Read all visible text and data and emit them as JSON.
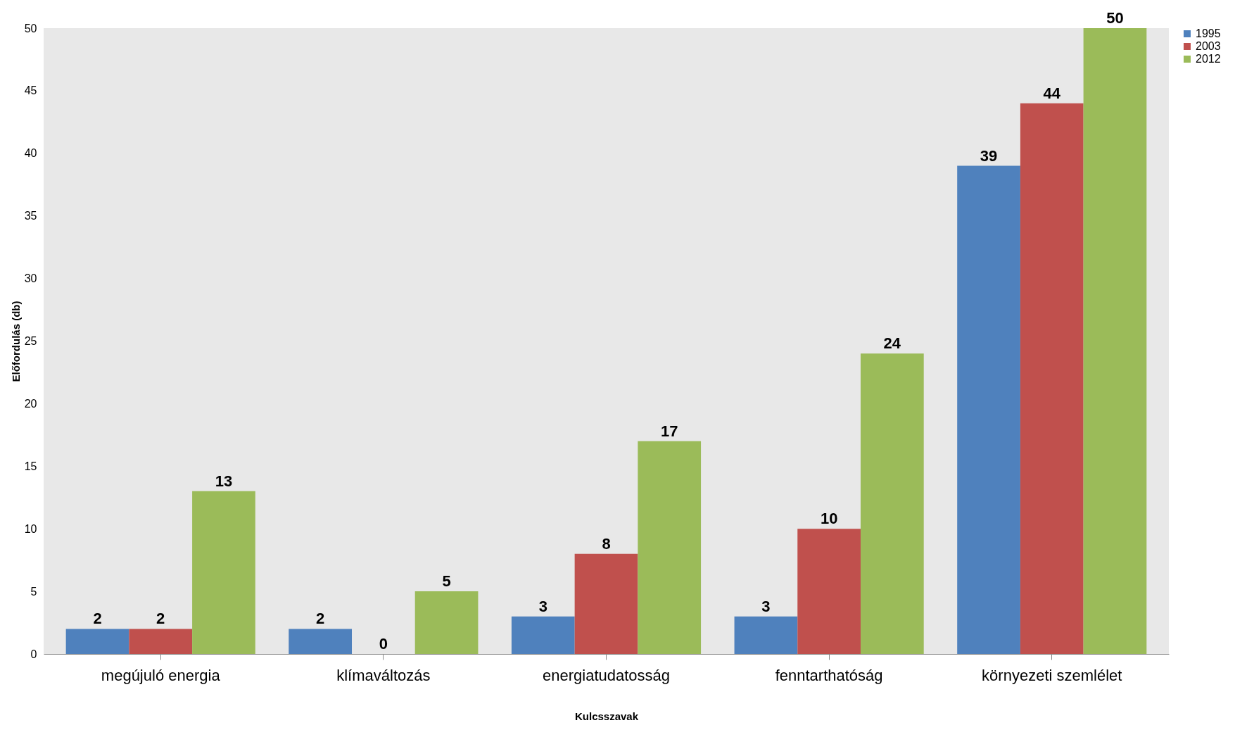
{
  "chart_data": {
    "type": "bar",
    "xlabel": "Kulcsszavak",
    "ylabel": "Előfordulás (db)",
    "categories": [
      "megújuló energia",
      "klímaváltozás",
      "energiatudatosság",
      "fenntarthatóság",
      "környezeti szemlélet"
    ],
    "series": [
      {
        "name": "1995",
        "color": "#4f81bd",
        "values": [
          2,
          2,
          3,
          3,
          39
        ]
      },
      {
        "name": "2003",
        "color": "#c0504d",
        "values": [
          2,
          0,
          8,
          10,
          44
        ]
      },
      {
        "name": "2012",
        "color": "#9bbb59",
        "values": [
          13,
          5,
          17,
          24,
          50
        ]
      }
    ],
    "ylim": [
      0,
      50
    ],
    "yticks": [
      0,
      5,
      10,
      15,
      20,
      25,
      30,
      35,
      40,
      45,
      50
    ],
    "grid": false,
    "legend": "right",
    "data_labels": true
  }
}
